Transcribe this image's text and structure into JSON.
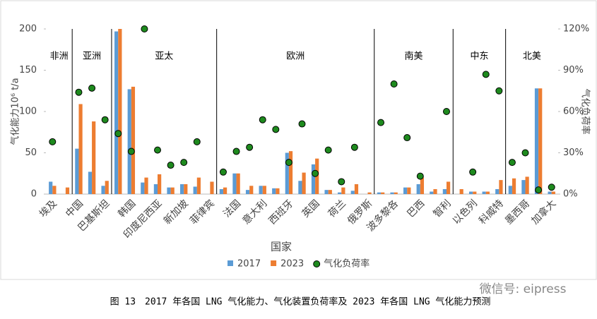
{
  "chart_data": {
    "type": "bar_scatter",
    "categories": [
      "埃及",
      null,
      "中国",
      null,
      "巴基斯坦",
      null,
      "韩国",
      null,
      "印度尼西亚",
      null,
      "新加坡",
      null,
      "菲律宾",
      null,
      "法国",
      null,
      "意大利",
      null,
      "西班牙",
      null,
      "英国",
      null,
      "荷兰",
      null,
      "俄罗斯",
      null,
      "波多黎各",
      null,
      "巴西",
      null,
      "智利",
      null,
      "以色列",
      null,
      "科威特",
      null,
      "墨西哥",
      null,
      "加拿大"
    ],
    "regions": [
      {
        "name": "非洲",
        "categories": 2
      },
      {
        "name": "亚洲",
        "categories": 3
      },
      {
        "name": "亚太",
        "categories": 8
      },
      {
        "name": "欧洲",
        "categories": 12
      },
      {
        "name": "南美",
        "categories": 6
      },
      {
        "name": "中东",
        "categories": 4
      },
      {
        "name": "北美",
        "categories": 4
      }
    ],
    "series": [
      {
        "name": "2017",
        "color": "#5b9bd5",
        "values": [
          15,
          0,
          55,
          27,
          10,
          197,
          127,
          14,
          12,
          8,
          12,
          9,
          0,
          6,
          25,
          5,
          10,
          7,
          50,
          16,
          36,
          5,
          2,
          4,
          0,
          2,
          2,
          8,
          12,
          3,
          6,
          0,
          3,
          3,
          6,
          10,
          17,
          128,
          3
        ]
      },
      {
        "name": "2023",
        "color": "#ed7d31",
        "values": [
          10,
          8,
          109,
          88,
          16,
          200,
          130,
          20,
          24,
          8,
          12,
          20,
          15,
          8,
          25,
          10,
          10,
          7,
          52,
          26,
          43,
          5,
          8,
          12,
          2,
          2,
          2,
          8,
          20,
          6,
          15,
          6,
          3,
          3,
          17,
          19,
          21,
          128,
          3
        ]
      },
      {
        "name": "气化负荷率",
        "color": "#1e8a1e",
        "axis": "y2",
        "values": [
          38,
          null,
          74,
          77,
          54,
          44,
          31,
          120,
          32,
          21,
          23,
          38,
          null,
          16,
          31,
          34,
          54,
          47,
          23,
          51,
          15,
          32,
          9,
          34,
          null,
          52,
          80,
          41,
          13,
          null,
          60,
          null,
          16,
          87,
          75,
          23,
          30,
          3,
          5
        ]
      }
    ],
    "ylim": [
      0,
      200
    ],
    "yticks": [
      0,
      50,
      100,
      150,
      200
    ],
    "y2lim": [
      0,
      120
    ],
    "y2ticks": [
      {
        "value": 0,
        "label": "0%"
      },
      {
        "value": 30,
        "label": "30%"
      },
      {
        "value": 60,
        "label": "60%"
      },
      {
        "value": 90,
        "label": "90%"
      },
      {
        "value": 120,
        "label": "120%"
      }
    ],
    "ylabel": "气化能力10⁶ t/a",
    "y2label": "气化负荷率",
    "xlabel": "国家",
    "caption": "图 13　2017 年各国 LNG 气化能力、气化装置负荷率及 2023 年各国 LNG 气化能力预测",
    "watermark": "微信号: eipress"
  }
}
